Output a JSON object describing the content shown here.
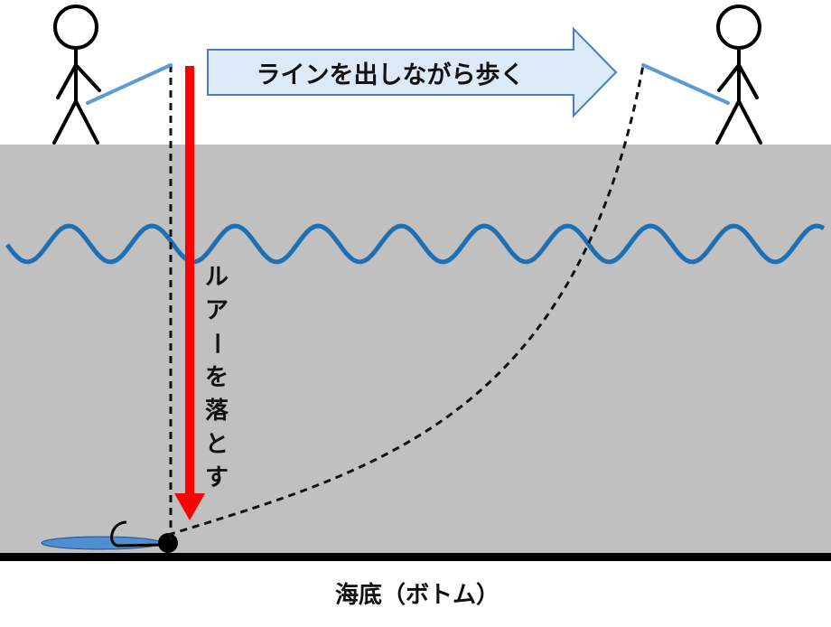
{
  "labels": {
    "walk_instruction": "ラインを出しながら歩く",
    "drop_instruction_chars": [
      "ル",
      "ア",
      "ー",
      "を",
      "落",
      "と",
      "す"
    ],
    "bottom_caption": "海底（ボトム）"
  },
  "colors": {
    "water_fill": "#c0c0c0",
    "wave": "#1f6fb2",
    "arrow_fill": "#dce9f6",
    "arrow_stroke": "#4a7fbf",
    "rod": "#5b9bd5",
    "drop_arrow": "#ff0000",
    "line": "#111111",
    "seabed": "#000000",
    "lure_shadow": "#4f8fd0"
  },
  "icons": {
    "angler_left": "stick-figure-icon",
    "angler_right": "stick-figure-icon",
    "lure": "lure-icon"
  }
}
